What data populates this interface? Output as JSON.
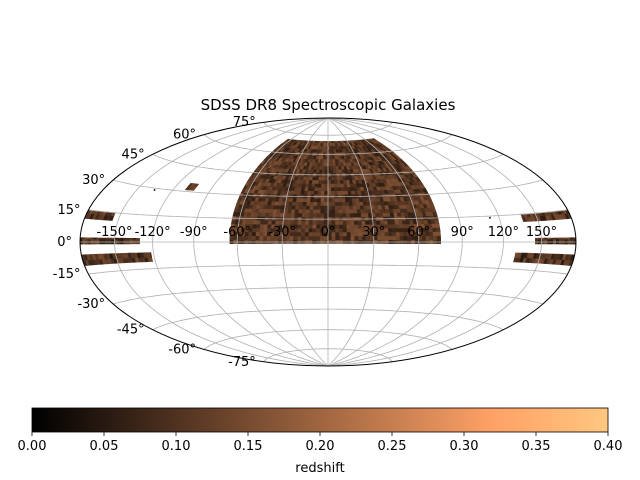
{
  "chart_data": {
    "type": "scatter",
    "projection": "hammer (aitoff-like all-sky)",
    "title": "SDSS DR8 Spectroscopic Galaxies",
    "xlabel": "",
    "ylabel": "",
    "grid": true,
    "lon_ticks": [
      -150,
      -120,
      -90,
      -60,
      -30,
      0,
      30,
      60,
      90,
      120,
      150
    ],
    "lon_tick_labels": [
      "-150°",
      "-120°",
      "-90°",
      "-60°",
      "-30°",
      "0°",
      "30°",
      "60°",
      "90°",
      "120°",
      "150°"
    ],
    "lat_ticks": [
      75,
      60,
      45,
      30,
      15,
      0,
      -15,
      -30,
      -45,
      -60,
      -75
    ],
    "lat_tick_labels": [
      "75°",
      "60°",
      "45°",
      "30°",
      "15°",
      "0°",
      "-15°",
      "-30°",
      "-45°",
      "-60°",
      "-75°"
    ],
    "xlim": [
      -180,
      180
    ],
    "ylim": [
      -90,
      90
    ],
    "colormap": "copper",
    "color_range": [
      0.0,
      0.4
    ],
    "colorbar": {
      "label": "redshift",
      "ticks": [
        0.0,
        0.05,
        0.1,
        0.15,
        0.2,
        0.25,
        0.3,
        0.35,
        0.4
      ],
      "tick_labels": [
        "0.00",
        "0.05",
        "0.10",
        "0.15",
        "0.20",
        "0.25",
        "0.30",
        "0.35",
        "0.40"
      ],
      "placement": "bottom"
    },
    "footprint_regions": [
      {
        "name": "north-galactic-cap",
        "lon_range": [
          -65,
          75
        ],
        "lat_range": [
          -1,
          70
        ],
        "typical_redshift": 0.11
      },
      {
        "name": "north-cap-stripe",
        "lon_range": [
          40,
          55
        ],
        "lat_range": [
          55,
          65
        ],
        "typical_redshift": 0.1
      },
      {
        "name": "isolated-patch",
        "lon_range": [
          -110,
          -103
        ],
        "lat_range": [
          31,
          35
        ],
        "typical_redshift": 0.1
      },
      {
        "name": "east-stripe-upper",
        "lon_range": [
          138,
          180
        ],
        "lat_range": [
          11,
          15
        ],
        "typical_redshift": 0.1
      },
      {
        "name": "east-stripe-mid",
        "lon_range": [
          145,
          180
        ],
        "lat_range": [
          -1,
          2
        ],
        "typical_redshift": 0.1
      },
      {
        "name": "east-stripe-lower",
        "lon_range": [
          130,
          180
        ],
        "lat_range": [
          -11,
          -6
        ],
        "typical_redshift": 0.1
      },
      {
        "name": "west-stripe-upper",
        "lon_range": [
          -180,
          -155
        ],
        "lat_range": [
          11,
          15
        ],
        "typical_redshift": 0.1
      },
      {
        "name": "west-stripe-mid",
        "lon_range": [
          -180,
          -130
        ],
        "lat_range": [
          -1,
          2
        ],
        "typical_redshift": 0.1
      },
      {
        "name": "west-stripe-lower",
        "lon_range": [
          -180,
          -122
        ],
        "lat_range": [
          -11,
          -6
        ],
        "typical_redshift": 0.1
      }
    ],
    "isolated_points": [
      {
        "lon": -135,
        "lat": 29
      },
      {
        "lon": 113,
        "lat": 14
      }
    ]
  }
}
